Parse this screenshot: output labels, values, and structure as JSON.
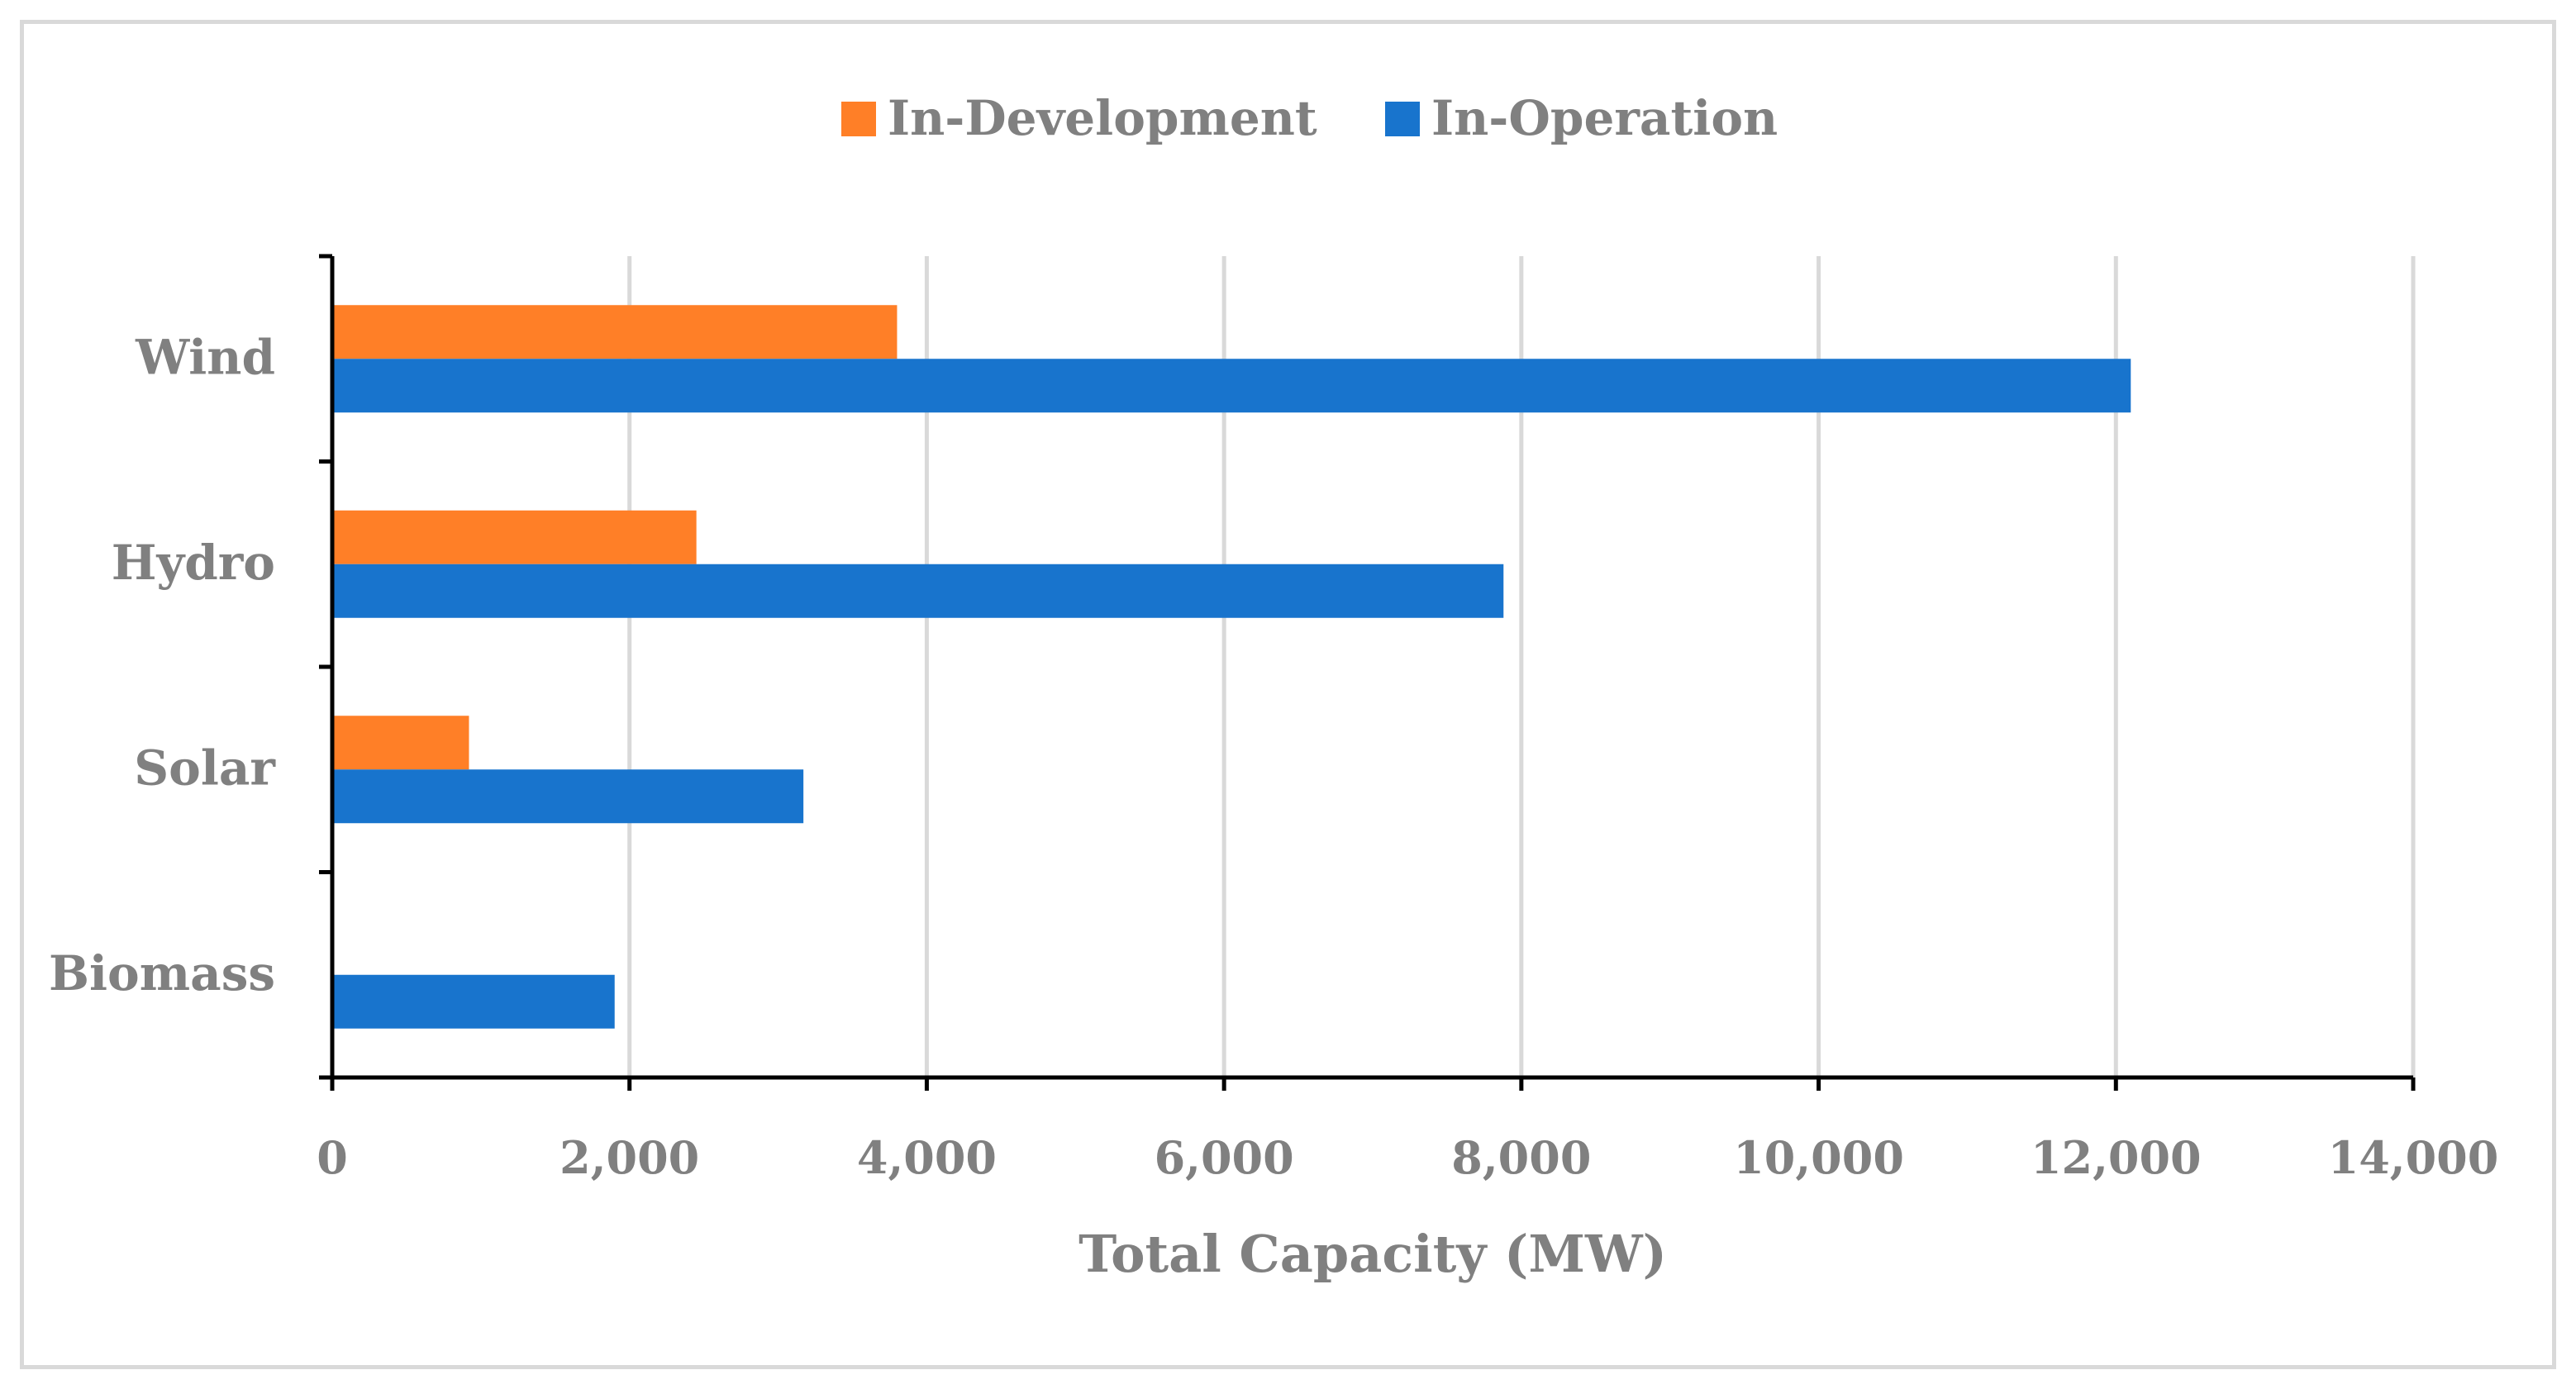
{
  "chart_data": {
    "type": "bar",
    "orientation": "horizontal",
    "title": "",
    "categories": [
      "Wind",
      "Hydro",
      "Solar",
      "Biomass"
    ],
    "series": [
      {
        "name": "In-Development",
        "color": "#ff7f27",
        "values": [
          3800,
          2450,
          920,
          0
        ]
      },
      {
        "name": "In-Operation",
        "color": "#1874cd",
        "values": [
          12100,
          7880,
          3170,
          1900
        ]
      }
    ],
    "xlabel": "Total Capacity (MW)",
    "ylabel": "",
    "xlim": [
      0,
      14000
    ],
    "xticks": [
      0,
      2000,
      4000,
      6000,
      8000,
      10000,
      12000,
      14000
    ],
    "xtick_labels": [
      "0",
      "2,000",
      "4,000",
      "6,000",
      "8,000",
      "10,000",
      "12,000",
      "14,000"
    ],
    "grid": "vertical",
    "legend": "top-center"
  }
}
